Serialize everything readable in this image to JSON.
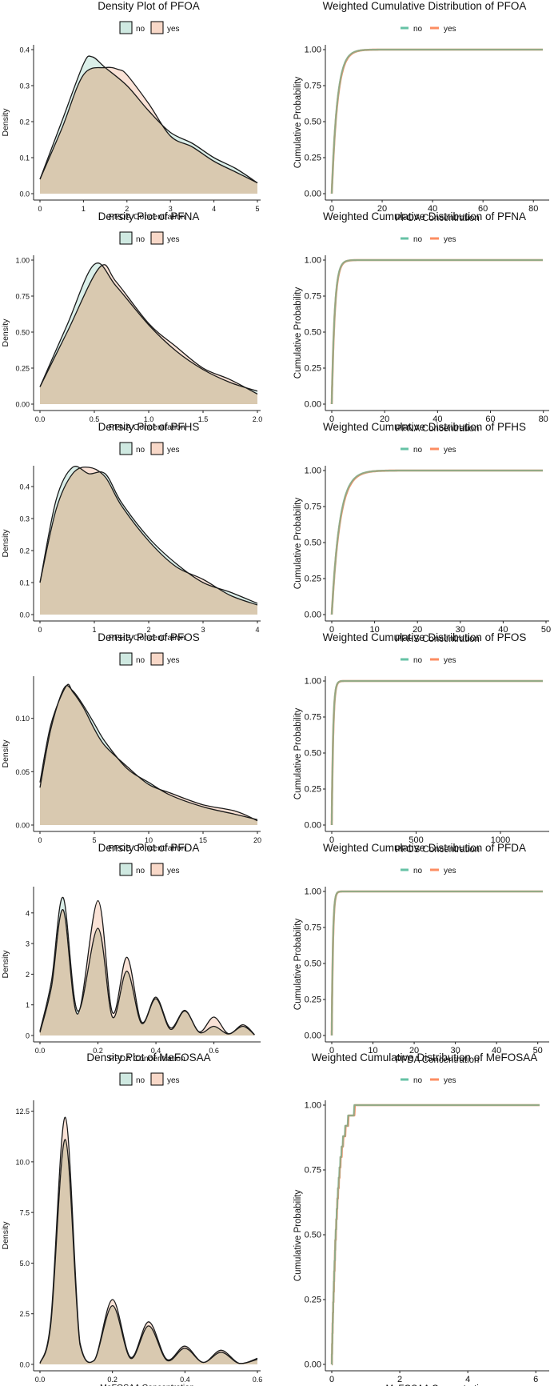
{
  "chart_data": [
    {
      "type": "area",
      "kind": "density",
      "title": "Density Plot of PFOA",
      "xlabel": "PFOA Concentration",
      "ylabel": "Density",
      "xlim": [
        0,
        5
      ],
      "ylim": [
        0,
        0.4
      ],
      "xticks": [
        0,
        1,
        2,
        3,
        4,
        5
      ],
      "yticks": [
        0.0,
        0.1,
        0.2,
        0.3,
        0.4
      ],
      "ytick_labels": [
        "0.0",
        "0.1",
        "0.2",
        "0.3",
        "0.4"
      ],
      "legend": [
        "no",
        "yes"
      ],
      "series": [
        {
          "name": "no",
          "x": [
            0,
            0.5,
            1.0,
            1.2,
            1.5,
            2.0,
            2.5,
            3.0,
            3.5,
            4.0,
            4.5,
            5.0
          ],
          "values": [
            0.04,
            0.2,
            0.36,
            0.38,
            0.35,
            0.3,
            0.23,
            0.17,
            0.14,
            0.1,
            0.07,
            0.03
          ]
        },
        {
          "name": "yes",
          "x": [
            0,
            0.5,
            1.0,
            1.5,
            1.8,
            2.0,
            2.5,
            3.0,
            3.5,
            4.0,
            4.5,
            5.0
          ],
          "values": [
            0.04,
            0.18,
            0.33,
            0.35,
            0.345,
            0.33,
            0.25,
            0.16,
            0.13,
            0.09,
            0.06,
            0.03
          ]
        }
      ]
    },
    {
      "type": "line",
      "kind": "ecdf",
      "title": "Weighted Cumulative Distribution of PFOA",
      "xlabel": "PFOA Concentration",
      "ylabel": "Cumulative Probability",
      "xlim": [
        0,
        85
      ],
      "ylim": [
        0,
        1
      ],
      "xticks": [
        0,
        20,
        40,
        60,
        80
      ],
      "yticks": [
        0,
        0.25,
        0.5,
        0.75,
        1.0
      ],
      "ytick_labels": [
        "0.00",
        "0.25",
        "0.50",
        "0.75",
        "1.00"
      ],
      "legend": [
        "no",
        "yes"
      ],
      "rate": 0.46,
      "series": [
        {
          "name": "no"
        },
        {
          "name": "yes"
        }
      ]
    },
    {
      "type": "area",
      "kind": "density",
      "title": "Density Plot of PFNA",
      "xlabel": "PFNA Concentration",
      "ylabel": "Density",
      "xlim": [
        0,
        2
      ],
      "ylim": [
        0,
        1.0
      ],
      "xticks": [
        0.0,
        0.5,
        1.0,
        1.5,
        2.0
      ],
      "xtick_labels": [
        "0.0",
        "0.5",
        "1.0",
        "1.5",
        "2.0"
      ],
      "yticks": [
        0.0,
        0.25,
        0.5,
        0.75,
        1.0
      ],
      "ytick_labels": [
        "0.00",
        "0.25",
        "0.50",
        "0.75",
        "1.00"
      ],
      "legend": [
        "no",
        "yes"
      ],
      "series": [
        {
          "name": "no",
          "x": [
            0,
            0.25,
            0.5,
            0.7,
            1.0,
            1.25,
            1.5,
            1.75,
            2.0
          ],
          "values": [
            0.12,
            0.55,
            0.97,
            0.82,
            0.55,
            0.37,
            0.24,
            0.15,
            0.09
          ]
        },
        {
          "name": "yes",
          "x": [
            0,
            0.25,
            0.55,
            0.7,
            1.0,
            1.25,
            1.5,
            1.75,
            2.0
          ],
          "values": [
            0.12,
            0.5,
            0.95,
            0.85,
            0.56,
            0.4,
            0.25,
            0.17,
            0.07
          ]
        }
      ]
    },
    {
      "type": "line",
      "kind": "ecdf",
      "title": "Weighted Cumulative Distribution of PFNA",
      "xlabel": "PFNA Concentration",
      "ylabel": "Cumulative Probability",
      "xlim": [
        0,
        81
      ],
      "ylim": [
        0,
        1
      ],
      "xticks": [
        0,
        20,
        40,
        60,
        80
      ],
      "yticks": [
        0,
        0.25,
        0.5,
        0.75,
        1.0
      ],
      "ytick_labels": [
        "0.00",
        "0.25",
        "0.50",
        "0.75",
        "1.00"
      ],
      "legend": [
        "no",
        "yes"
      ],
      "rate": 0.9,
      "series": [
        {
          "name": "no"
        },
        {
          "name": "yes"
        }
      ]
    },
    {
      "type": "area",
      "kind": "density",
      "title": "Density Plot of PFHS",
      "xlabel": "PFHS Concentration",
      "ylabel": "Density",
      "xlim": [
        0,
        4
      ],
      "ylim": [
        0,
        0.45
      ],
      "xticks": [
        0,
        1,
        2,
        3,
        4
      ],
      "yticks": [
        0.0,
        0.1,
        0.2,
        0.3,
        0.4
      ],
      "ytick_labels": [
        "0.0",
        "0.1",
        "0.2",
        "0.3",
        "0.4"
      ],
      "legend": [
        "no",
        "yes"
      ],
      "series": [
        {
          "name": "no",
          "x": [
            0,
            0.3,
            0.6,
            0.9,
            1.2,
            1.5,
            2.0,
            2.5,
            3.0,
            3.5,
            4.0
          ],
          "values": [
            0.1,
            0.36,
            0.46,
            0.44,
            0.44,
            0.35,
            0.24,
            0.16,
            0.1,
            0.07,
            0.035
          ]
        },
        {
          "name": "yes",
          "x": [
            0,
            0.3,
            0.6,
            0.9,
            1.2,
            1.5,
            2.0,
            2.5,
            3.0,
            3.5,
            4.0
          ],
          "values": [
            0.1,
            0.33,
            0.44,
            0.46,
            0.43,
            0.34,
            0.23,
            0.15,
            0.11,
            0.06,
            0.03
          ]
        }
      ]
    },
    {
      "type": "line",
      "kind": "ecdf",
      "title": "Weighted Cumulative Distribution of PFHS",
      "xlabel": "PFHS Concentration",
      "ylabel": "Cumulative Probability",
      "xlim": [
        0,
        50
      ],
      "ylim": [
        0,
        1
      ],
      "xticks": [
        0,
        10,
        20,
        30,
        40,
        50
      ],
      "yticks": [
        0,
        0.25,
        0.5,
        0.75,
        1.0
      ],
      "ytick_labels": [
        "0.00",
        "0.25",
        "0.50",
        "0.75",
        "1.00"
      ],
      "legend": [
        "no",
        "yes"
      ],
      "rate": 0.55,
      "series": [
        {
          "name": "no"
        },
        {
          "name": "yes"
        }
      ]
    },
    {
      "type": "area",
      "kind": "density",
      "title": "Density Plot of PFOS",
      "xlabel": "PFOS Concentration",
      "ylabel": "Density",
      "xlim": [
        0,
        20
      ],
      "ylim": [
        0,
        0.135
      ],
      "xticks": [
        0,
        5,
        10,
        15,
        20
      ],
      "yticks": [
        0.0,
        0.05,
        0.1
      ],
      "ytick_labels": [
        "0.00",
        "0.05",
        "0.10"
      ],
      "legend": [
        "no",
        "yes"
      ],
      "series": [
        {
          "name": "no",
          "x": [
            0,
            1,
            2.2,
            3,
            4,
            5,
            6,
            8,
            10,
            12,
            15,
            18,
            20
          ],
          "values": [
            0.035,
            0.09,
            0.128,
            0.126,
            0.112,
            0.095,
            0.078,
            0.053,
            0.04,
            0.028,
            0.017,
            0.01,
            0.005
          ]
        },
        {
          "name": "yes",
          "x": [
            0,
            1,
            2.4,
            3,
            4,
            5,
            6,
            8,
            10,
            12,
            15,
            18,
            20
          ],
          "values": [
            0.04,
            0.094,
            0.13,
            0.125,
            0.11,
            0.09,
            0.074,
            0.055,
            0.038,
            0.03,
            0.019,
            0.013,
            0.004
          ]
        }
      ]
    },
    {
      "type": "line",
      "kind": "ecdf",
      "title": "Weighted Cumulative Distribution of PFOS",
      "xlabel": "PFOS Concentration",
      "ylabel": "Cumulative Probability",
      "xlim": [
        0,
        1270
      ],
      "ylim": [
        0,
        1
      ],
      "xticks": [
        0,
        500,
        1000
      ],
      "yticks": [
        0,
        0.25,
        0.5,
        0.75,
        1.0
      ],
      "ytick_labels": [
        "0.00",
        "0.25",
        "0.50",
        "0.75",
        "1.00"
      ],
      "legend": [
        "no",
        "yes"
      ],
      "rate": 0.12,
      "series": [
        {
          "name": "no"
        },
        {
          "name": "yes"
        }
      ]
    },
    {
      "type": "area",
      "kind": "density",
      "title": "Density Plot of PFDA",
      "xlabel": "PFDA Concentration",
      "ylabel": "Density",
      "xlim": [
        0,
        0.75
      ],
      "ylim": [
        0,
        4.7
      ],
      "xticks": [
        0.0,
        0.2,
        0.4,
        0.6
      ],
      "xtick_labels": [
        "0.0",
        "0.2",
        "0.4",
        "0.6"
      ],
      "yticks": [
        0,
        1,
        2,
        3,
        4
      ],
      "ytick_labels": [
        "0",
        "1",
        "2",
        "3",
        "4"
      ],
      "legend": [
        "no",
        "yes"
      ],
      "series": [
        {
          "name": "no",
          "x": [
            0,
            0.04,
            0.08,
            0.13,
            0.2,
            0.25,
            0.3,
            0.35,
            0.4,
            0.45,
            0.5,
            0.55,
            0.6,
            0.65,
            0.7,
            0.74
          ],
          "values": [
            0.15,
            1.8,
            4.5,
            0.8,
            3.5,
            0.6,
            2.1,
            0.4,
            1.2,
            0.2,
            0.8,
            0.1,
            0.3,
            0.05,
            0.3,
            0.02
          ]
        },
        {
          "name": "yes",
          "x": [
            0,
            0.04,
            0.08,
            0.13,
            0.2,
            0.25,
            0.3,
            0.35,
            0.4,
            0.45,
            0.5,
            0.55,
            0.6,
            0.65,
            0.7,
            0.74
          ],
          "values": [
            0.1,
            1.6,
            4.1,
            0.7,
            4.4,
            0.75,
            2.55,
            0.45,
            1.25,
            0.25,
            0.82,
            0.12,
            0.6,
            0.06,
            0.35,
            0.03
          ]
        }
      ]
    },
    {
      "type": "line",
      "kind": "ecdf",
      "title": "Weighted Cumulative Distribution of PFDA",
      "xlabel": "PFDA Concentration",
      "ylabel": "Cumulative Probability",
      "xlim": [
        0,
        52
      ],
      "ylim": [
        0,
        1
      ],
      "xticks": [
        0,
        10,
        20,
        30,
        40,
        50
      ],
      "yticks": [
        0,
        0.25,
        0.5,
        0.75,
        1.0
      ],
      "ytick_labels": [
        "0.00",
        "0.25",
        "0.50",
        "0.75",
        "1.00"
      ],
      "legend": [
        "no",
        "yes"
      ],
      "rate": 3.5,
      "series": [
        {
          "name": "no"
        },
        {
          "name": "yes"
        }
      ]
    },
    {
      "type": "area",
      "kind": "density",
      "title": "Density Plot of MeFOSAA",
      "xlabel": "MeFOSAA Concentration",
      "ylabel": "Density",
      "xlim": [
        0,
        0.6
      ],
      "ylim": [
        0,
        12.8
      ],
      "xticks": [
        0.0,
        0.2,
        0.4,
        0.6
      ],
      "xtick_labels": [
        "0.0",
        "0.2",
        "0.4",
        "0.6"
      ],
      "yticks": [
        0,
        2.5,
        5.0,
        7.5,
        10.0,
        12.5
      ],
      "ytick_labels": [
        "0.0",
        "2.5",
        "5.0",
        "7.5",
        "10.0",
        "12.5"
      ],
      "legend": [
        "no",
        "yes"
      ],
      "series": [
        {
          "name": "no",
          "x": [
            0,
            0.03,
            0.07,
            0.11,
            0.15,
            0.2,
            0.25,
            0.3,
            0.35,
            0.4,
            0.45,
            0.5,
            0.55,
            0.6
          ],
          "values": [
            0.05,
            2.0,
            11.1,
            1.0,
            0.2,
            2.9,
            0.3,
            1.9,
            0.2,
            0.8,
            0.1,
            0.6,
            0.05,
            0.3
          ]
        },
        {
          "name": "yes",
          "x": [
            0,
            0.03,
            0.07,
            0.11,
            0.15,
            0.2,
            0.25,
            0.3,
            0.35,
            0.4,
            0.45,
            0.5,
            0.55,
            0.6
          ],
          "values": [
            0.05,
            2.2,
            12.2,
            1.1,
            0.2,
            3.2,
            0.35,
            2.1,
            0.25,
            0.9,
            0.1,
            0.7,
            0.05,
            0.25
          ]
        }
      ]
    },
    {
      "type": "line",
      "kind": "ecdf",
      "title": "Weighted Cumulative Distribution of MeFOSAA",
      "xlabel": "MeFOSAA Concentration",
      "ylabel": "Cumulative Probability",
      "xlim": [
        0,
        6.3
      ],
      "ylim": [
        0,
        1
      ],
      "xticks": [
        0,
        2,
        4,
        6
      ],
      "yticks": [
        0,
        0.25,
        0.5,
        0.75,
        1.0
      ],
      "ytick_labels": [
        "0.00",
        "0.25",
        "0.50",
        "0.75",
        "1.00"
      ],
      "legend": [
        "no",
        "yes"
      ],
      "rate": 6.0,
      "steps": true,
      "series": [
        {
          "name": "no"
        },
        {
          "name": "yes"
        }
      ]
    }
  ],
  "colors": {
    "no_fill": "#cfe9e1",
    "yes_fill": "#f8d8c8",
    "overlap_fill": "#d9c9b0",
    "no_line": "#66c2a5",
    "yes_line": "#fc8d62",
    "axis": "#222222",
    "text": "#111111"
  }
}
